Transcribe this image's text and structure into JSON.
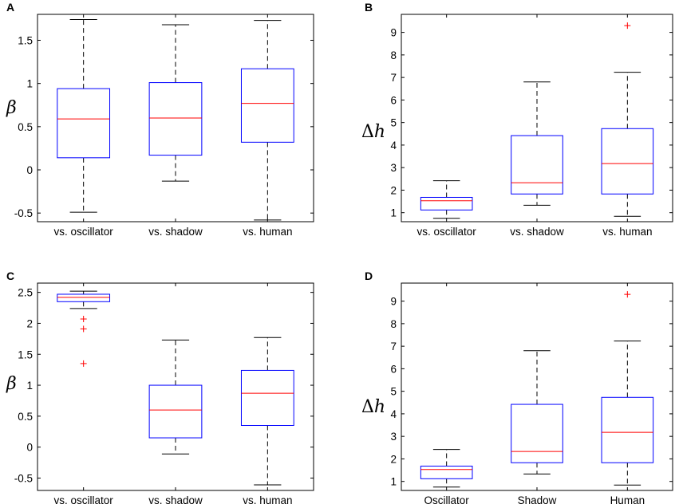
{
  "colors": {
    "box": "#0000ff",
    "median": "#ff0000",
    "whisker": "#000000",
    "outlier": "#ff0000"
  },
  "chart_data": [
    {
      "type": "boxplot",
      "panel_label": "A",
      "ylabel": "β",
      "ylim": [
        -0.6,
        1.8
      ],
      "yticks": [
        -0.5,
        0,
        0.5,
        1,
        1.5
      ],
      "ytick_labels": [
        "-0.5",
        "0",
        "0.5",
        "1",
        "1.5"
      ],
      "categories": [
        "vs. oscillator",
        "vs. shadow",
        "vs. human"
      ],
      "boxes": [
        {
          "whisker_low": -0.49,
          "q1": 0.14,
          "median": 0.59,
          "q3": 0.94,
          "whisker_high": 1.74,
          "outliers": []
        },
        {
          "whisker_low": -0.13,
          "q1": 0.17,
          "median": 0.6,
          "q3": 1.01,
          "whisker_high": 1.68,
          "outliers": []
        },
        {
          "whisker_low": -0.58,
          "q1": 0.32,
          "median": 0.77,
          "q3": 1.17,
          "whisker_high": 1.73,
          "outliers": []
        }
      ]
    },
    {
      "type": "boxplot",
      "panel_label": "B",
      "ylabel": "Δh",
      "ylim": [
        0.6,
        9.8
      ],
      "yticks": [
        1,
        2,
        3,
        4,
        5,
        6,
        7,
        8,
        9
      ],
      "ytick_labels": [
        "1",
        "2",
        "3",
        "4",
        "5",
        "6",
        "7",
        "8",
        "9"
      ],
      "categories": [
        "vs. oscillator",
        "vs. shadow",
        "vs. human"
      ],
      "boxes": [
        {
          "whisker_low": 0.75,
          "q1": 1.12,
          "median": 1.53,
          "q3": 1.68,
          "whisker_high": 2.42,
          "outliers": []
        },
        {
          "whisker_low": 1.33,
          "q1": 1.83,
          "median": 2.33,
          "q3": 4.42,
          "whisker_high": 6.8,
          "outliers": []
        },
        {
          "whisker_low": 0.84,
          "q1": 1.83,
          "median": 3.18,
          "q3": 4.73,
          "whisker_high": 7.23,
          "outliers": [
            9.3
          ]
        }
      ]
    },
    {
      "type": "boxplot",
      "panel_label": "C",
      "ylabel": "β",
      "ylim": [
        -0.7,
        2.65
      ],
      "yticks": [
        -0.5,
        0,
        0.5,
        1,
        1.5,
        2,
        2.5
      ],
      "ytick_labels": [
        "-0.5",
        "0",
        "0.5",
        "1",
        "1.5",
        "2",
        "2.5"
      ],
      "categories": [
        "vs. oscillator",
        "vs. shadow",
        "vs. human"
      ],
      "boxes": [
        {
          "whisker_low": 2.24,
          "q1": 2.35,
          "median": 2.42,
          "q3": 2.47,
          "whisker_high": 2.52,
          "outliers": [
            2.07,
            1.91,
            1.35
          ]
        },
        {
          "whisker_low": -0.11,
          "q1": 0.15,
          "median": 0.6,
          "q3": 1.0,
          "whisker_high": 1.73,
          "outliers": []
        },
        {
          "whisker_low": -0.61,
          "q1": 0.35,
          "median": 0.87,
          "q3": 1.24,
          "whisker_high": 1.77,
          "outliers": []
        }
      ]
    },
    {
      "type": "boxplot",
      "panel_label": "D",
      "ylabel": "Δh",
      "ylim": [
        0.6,
        9.8
      ],
      "yticks": [
        1,
        2,
        3,
        4,
        5,
        6,
        7,
        8,
        9
      ],
      "ytick_labels": [
        "1",
        "2",
        "3",
        "4",
        "5",
        "6",
        "7",
        "8",
        "9"
      ],
      "categories": [
        "Oscillator",
        "Shadow",
        "Human"
      ],
      "boxes": [
        {
          "whisker_low": 0.75,
          "q1": 1.12,
          "median": 1.53,
          "q3": 1.68,
          "whisker_high": 2.42,
          "outliers": []
        },
        {
          "whisker_low": 1.33,
          "q1": 1.83,
          "median": 2.33,
          "q3": 4.42,
          "whisker_high": 6.8,
          "outliers": []
        },
        {
          "whisker_low": 0.84,
          "q1": 1.83,
          "median": 3.18,
          "q3": 4.73,
          "whisker_high": 7.23,
          "outliers": [
            9.3
          ]
        }
      ]
    }
  ]
}
